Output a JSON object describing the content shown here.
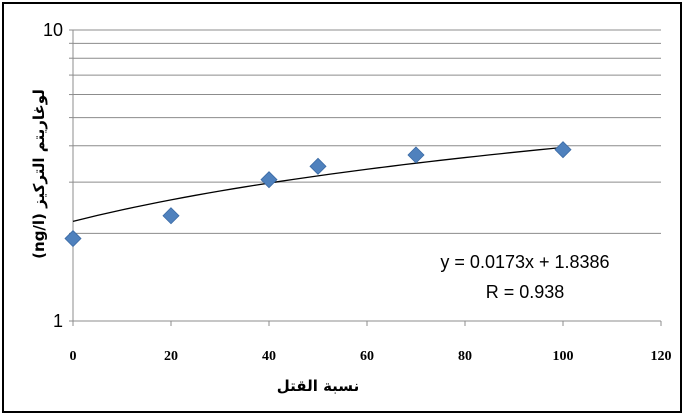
{
  "chart_data": {
    "type": "scatter",
    "xlabel": "نسبة القتل",
    "ylabel": "لوغاريتم التركيز (ng/l)",
    "xlim": [
      0,
      120
    ],
    "x_ticks": [
      "0",
      "20",
      "40",
      "60",
      "80",
      "100",
      "120"
    ],
    "ylim": [
      1,
      10
    ],
    "y_scale": "log",
    "y_ticks": [
      "1",
      "10"
    ],
    "grid": "horizontal",
    "legend": "none",
    "series": [
      {
        "x": [
          0,
          20,
          40,
          50,
          70,
          100
        ],
        "y": [
          1.92,
          2.3,
          3.06,
          3.4,
          3.72,
          3.88
        ],
        "marker": "diamond",
        "color": "#4f81bd"
      }
    ],
    "trendline": {
      "type": "logarithmic-curve",
      "x_range": [
        0,
        100
      ],
      "y_start": 2.2,
      "y_end": 3.95,
      "color": "#000000"
    },
    "annotations": {
      "equation": "y = 0.0173x + 1.8386",
      "r_value": "R = 0.938"
    }
  }
}
